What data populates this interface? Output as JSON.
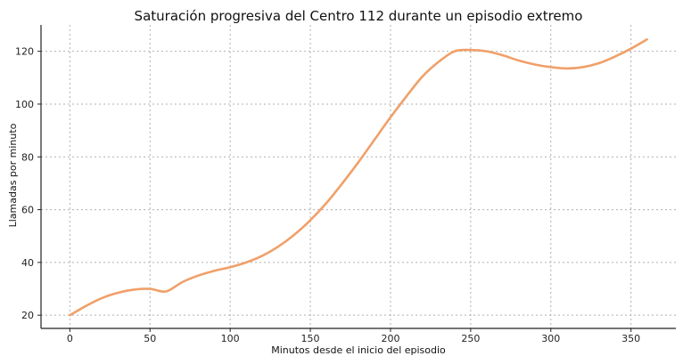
{
  "chart_data": {
    "type": "line",
    "title": "Saturación progresiva del Centro 112 durante un episodio extremo",
    "xlabel": "Minutos desde el inicio del episodio",
    "ylabel": "Llamadas por minuto",
    "xlim": [
      -18,
      378
    ],
    "ylim": [
      15,
      130
    ],
    "xticks": [
      0,
      50,
      100,
      150,
      200,
      250,
      300,
      350
    ],
    "yticks": [
      20,
      40,
      60,
      80,
      100,
      120
    ],
    "xtick_labels": [
      "0",
      "50",
      "100",
      "150",
      "200",
      "250",
      "300",
      "350"
    ],
    "ytick_labels": [
      "20",
      "40",
      "60",
      "80",
      "100",
      "120"
    ],
    "grid": true,
    "series": [
      {
        "color": "#f0a06a",
        "x": [
          0,
          10,
          20,
          30,
          40,
          50,
          60,
          70,
          80,
          90,
          100,
          110,
          120,
          130,
          140,
          150,
          160,
          170,
          180,
          190,
          200,
          210,
          220,
          230,
          240,
          250,
          260,
          270,
          280,
          290,
          300,
          310,
          320,
          330,
          340,
          350,
          360
        ],
        "y": [
          20,
          23.5,
          26.5,
          28.5,
          29.7,
          30,
          29,
          32.5,
          35,
          36.8,
          38.2,
          40,
          42.5,
          46,
          50.5,
          56,
          62.5,
          70,
          78,
          86.5,
          95,
          103,
          110.5,
          116,
          120,
          120.5,
          120,
          118.5,
          116.5,
          115,
          114,
          113.5,
          114,
          115.5,
          118,
          121,
          124.5
        ]
      }
    ]
  }
}
